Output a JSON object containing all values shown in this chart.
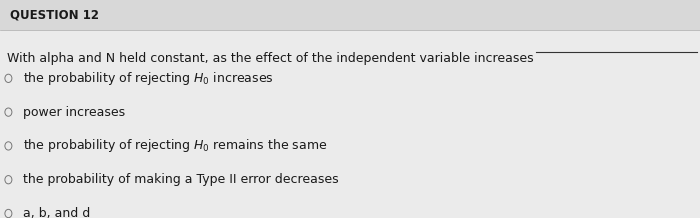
{
  "background_color": "#ebebeb",
  "question_label": "QUESTION 12",
  "question_label_fontsize": 8.5,
  "stem_text": "With alpha and N held constant, as the effect of the independent variable increases",
  "choices": [
    "the probability of rejecting $H_0$ increases",
    "power increases",
    "the probability of rejecting $H_0$ remains the same",
    "the probability of making a Type II error decreases",
    "a, b, and d"
  ],
  "choice_fontsize": 9.0,
  "text_color": "#1a1a1a",
  "header_bg_color": "#d8d8d8",
  "body_bg_color": "#ebebeb",
  "header_line_color": "#aaaaaa",
  "circle_color": "#777777",
  "underline_color": "#333333"
}
